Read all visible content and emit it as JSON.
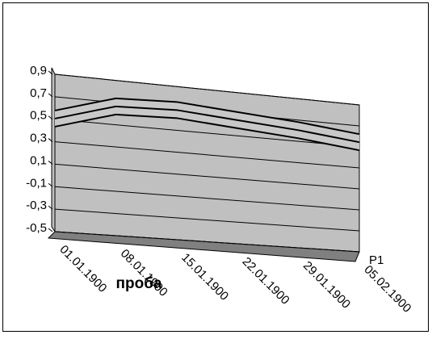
{
  "chart_data": {
    "type": "line",
    "x_title": "проба",
    "series_axis_label": "Р1",
    "categories": [
      "01.01.1900",
      "08.01.1900",
      "15.01.1900",
      "22.01.1900",
      "29.01.1900",
      "05.02.1900"
    ],
    "series": [
      {
        "name": "Р1",
        "color": "#000000",
        "values": [
          0.52,
          0.68,
          0.7,
          0.66,
          0.62,
          0.56
        ]
      }
    ],
    "ylim": [
      -0.5,
      0.9
    ],
    "yticks": [
      {
        "value": -0.5,
        "label": "-0,5"
      },
      {
        "value": -0.3,
        "label": "-0,3"
      },
      {
        "value": -0.1,
        "label": "-0,1"
      },
      {
        "value": 0.1,
        "label": "0,1"
      },
      {
        "value": 0.3,
        "label": "0,3"
      },
      {
        "value": 0.5,
        "label": "0,5"
      },
      {
        "value": 0.7,
        "label": "0,7"
      },
      {
        "value": 0.9,
        "label": "0,9"
      }
    ],
    "grid": true
  }
}
